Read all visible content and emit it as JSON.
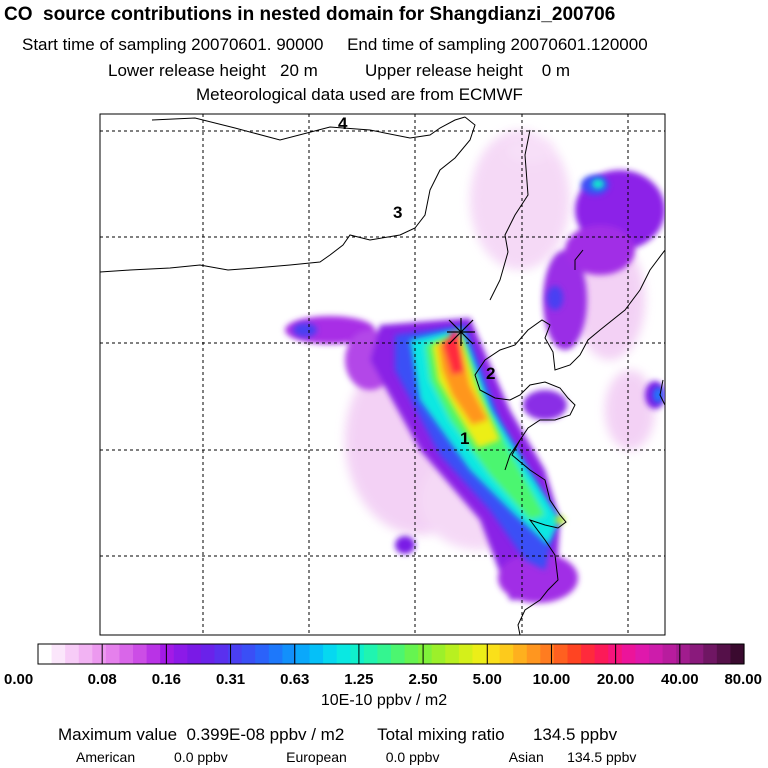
{
  "chart_data": {
    "type": "heatmap",
    "title": "CO  source contributions in nested domain for Shangdianzi_200706",
    "subtitle_lines": [
      "Start time of sampling 20070601. 90000     End time of sampling 20070601.120000",
      "Lower release height   20 m          Upper release height    0 m",
      "Meteorological data used are from ECMWF"
    ],
    "grid": true,
    "region_labels": [
      "1",
      "2",
      "3",
      "4"
    ],
    "colorbar": {
      "tick_labels": [
        "0.00",
        "0.08",
        "0.16",
        "0.31",
        "0.63",
        "1.25",
        "2.50",
        "5.00",
        "10.00",
        "20.00",
        "40.00",
        "80.00"
      ],
      "units": "10E-10 ppbv / m2",
      "colors": [
        "#ffffff",
        "#fbe6fb",
        "#f7ccf7",
        "#f2b3f3",
        "#ec99ef",
        "#e580ec",
        "#d966e9",
        "#cc4de6",
        "#b933e6",
        "#a31ae6",
        "#8c1ae8",
        "#7a1ae6",
        "#6a22ea",
        "#5a30ee",
        "#4a3ff2",
        "#3a4ff6",
        "#2b62fa",
        "#1d78fb",
        "#1290fb",
        "#0aa8fb",
        "#05c0f8",
        "#06d8f0",
        "#0ae8e2",
        "#10f0cc",
        "#20f4b0",
        "#34f590",
        "#4cf670",
        "#66f450",
        "#80f23a",
        "#9cf02a",
        "#b8f020",
        "#d4f01a",
        "#ecee18",
        "#fae01a",
        "#fdca1c",
        "#feb01e",
        "#ff961f",
        "#ff7c20",
        "#ff6020",
        "#ff4422",
        "#ff2a3c",
        "#fc1a58",
        "#f6147c",
        "#ec149a",
        "#df18ac",
        "#cd1cab",
        "#b81c9e",
        "#a11c8e",
        "#8a1a7c",
        "#6f1663",
        "#551049",
        "#3a0a2f"
      ],
      "hatches": 52
    },
    "summary": {
      "max_value_label": "Maximum value  0.399E-08 ppbv / m2",
      "total_label": "Total mixing ratio      134.5 ppbv",
      "regions": [
        {
          "name": "American",
          "value": "0.0 ppbv"
        },
        {
          "name": "European",
          "value": "0.0 ppbv"
        },
        {
          "name": "Asian",
          "value": "134.5 ppbv"
        }
      ]
    }
  }
}
